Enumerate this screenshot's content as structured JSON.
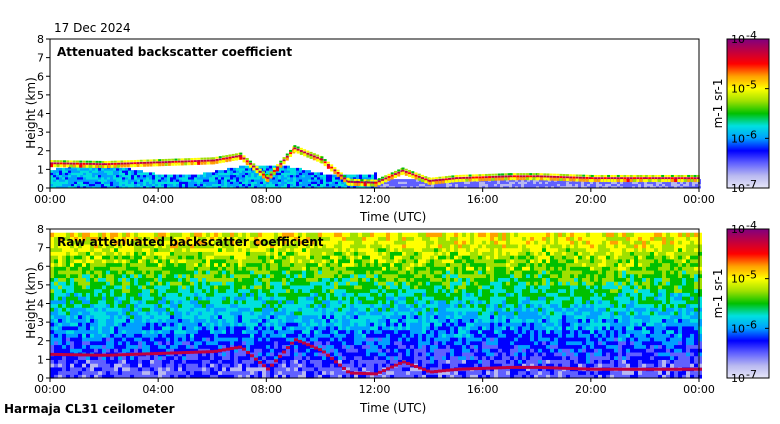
{
  "date_label": "17 Dec 2024",
  "footer_label": "Harmaja CL31 ceilometer",
  "colors": {
    "colorbar": [
      "#e8e8f8",
      "#b8b8f0",
      "#6060ff",
      "#0000ff",
      "#00a0ff",
      "#00e0e0",
      "#00c000",
      "#a0e000",
      "#ffff00",
      "#ffa000",
      "#ff0000",
      "#c00040",
      "#800080"
    ]
  },
  "chart_data": [
    {
      "type": "heatmap",
      "title": "Attenuated backscatter coefficient",
      "xlabel": "Time (UTC)",
      "ylabel": "Height (km)",
      "x_ticks": [
        "00:00",
        "04:00",
        "08:00",
        "12:00",
        "16:00",
        "20:00",
        "00:00"
      ],
      "y_ticks": [
        "0",
        "1",
        "2",
        "3",
        "4",
        "5",
        "6",
        "7",
        "8"
      ],
      "ylim": [
        0,
        8
      ],
      "xlim_hours": [
        0,
        24
      ],
      "colorbar": {
        "ticks": [
          "10",
          "10",
          "10",
          "10"
        ],
        "exponents": [
          "-4",
          "-5",
          "-6",
          "-7"
        ],
        "label": "m",
        "label_exp": "-1",
        "label_unit": " sr",
        "label_unit_exp": "-1"
      },
      "cloud_layer_km": [
        [
          0,
          1.3
        ],
        [
          2,
          1.25
        ],
        [
          4,
          1.35
        ],
        [
          6,
          1.45
        ],
        [
          7,
          1.7
        ],
        [
          8,
          0.5
        ],
        [
          9,
          2.1
        ],
        [
          10,
          1.5
        ],
        [
          11,
          0.3
        ],
        [
          12,
          0.25
        ],
        [
          13,
          0.9
        ],
        [
          14,
          0.35
        ],
        [
          15,
          0.5
        ],
        [
          17,
          0.6
        ],
        [
          18,
          0.6
        ],
        [
          20,
          0.5
        ],
        [
          22,
          0.5
        ],
        [
          24,
          0.5
        ]
      ],
      "grid": false,
      "legend": "right"
    },
    {
      "type": "heatmap",
      "title": "Raw attenuated backscatter coefficient",
      "xlabel": "Time (UTC)",
      "ylabel": "Height (km)",
      "x_ticks": [
        "00:00",
        "04:00",
        "08:00",
        "12:00",
        "16:00",
        "20:00",
        "00:00"
      ],
      "y_ticks": [
        "0",
        "1",
        "2",
        "3",
        "4",
        "5",
        "6",
        "7",
        "8"
      ],
      "ylim": [
        0,
        8
      ],
      "xlim_hours": [
        0,
        24
      ],
      "colorbar": {
        "ticks": [
          "10",
          "10",
          "10",
          "10"
        ],
        "exponents": [
          "-4",
          "-5",
          "-6",
          "-7"
        ],
        "label": "m",
        "label_exp": "-1",
        "label_unit": " sr",
        "label_unit_exp": "-1"
      },
      "grid": false,
      "legend": "right"
    }
  ]
}
